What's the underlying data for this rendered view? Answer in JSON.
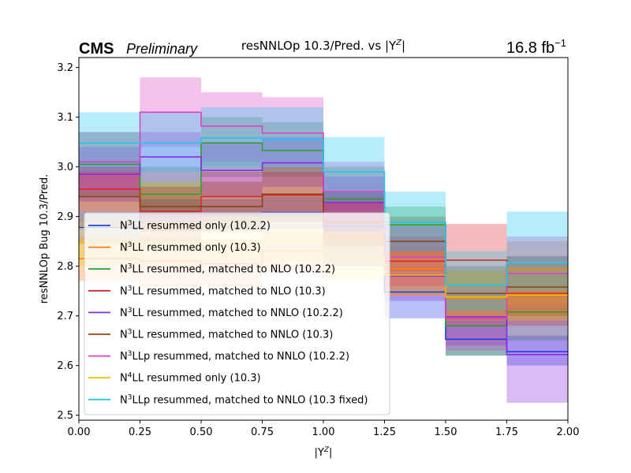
{
  "header": {
    "experiment": "CMS",
    "status": "Preliminary",
    "title": "resNNLOp 10.3/Pred. vs |Y",
    "title_sup": "Z",
    "title_end": "|",
    "lumi": "16.8 fb",
    "lumi_sup": "−1"
  },
  "chart_data": {
    "type": "line",
    "style": "step-with-uncertainty-bands",
    "xlabel": "|Y",
    "xlabel_sup": "Z",
    "xlabel_end": "|",
    "ylabel": "resNNLOp Bug 10.3/Pred.",
    "xlim": [
      0.0,
      2.0
    ],
    "ylim": [
      2.49,
      3.22
    ],
    "grid": false,
    "legend_position": "lower-left",
    "x_ticks": [
      0.0,
      0.25,
      0.5,
      0.75,
      1.0,
      1.25,
      1.5,
      1.75,
      2.0
    ],
    "x_tick_labels": [
      "0.00",
      "0.25",
      "0.50",
      "0.75",
      "1.00",
      "1.25",
      "1.50",
      "1.75",
      "2.00"
    ],
    "y_ticks": [
      2.5,
      2.6,
      2.7,
      2.8,
      2.9,
      3.0,
      3.1,
      3.2
    ],
    "y_tick_labels": [
      "2.5",
      "2.6",
      "2.7",
      "2.8",
      "2.9",
      "3.0",
      "3.1",
      "3.2"
    ],
    "bin_edges": [
      0.0,
      0.25,
      0.5,
      0.75,
      1.0,
      1.25,
      1.5,
      1.75,
      2.0
    ],
    "series": [
      {
        "pre": "N",
        "sup": "3",
        "post": "LL resummed only (10.2.2)",
        "color": "#1f3fe0",
        "values": [
          2.878,
          2.905,
          2.905,
          2.908,
          2.88,
          2.748,
          2.653,
          2.628
        ],
        "lo": [
          2.845,
          2.87,
          2.87,
          2.875,
          2.8,
          2.695,
          2.62,
          2.6
        ],
        "hi": [
          2.91,
          2.935,
          2.935,
          2.94,
          2.95,
          2.8,
          2.7,
          2.66
        ]
      },
      {
        "pre": "N",
        "sup": "3",
        "post": "LL resummed only (10.3)",
        "color": "#ff7f0e",
        "values": [
          2.815,
          2.81,
          2.805,
          2.83,
          2.855,
          2.795,
          2.735,
          2.793
        ],
        "lo": [
          2.77,
          2.76,
          2.76,
          2.79,
          2.8,
          2.74,
          2.68,
          2.7
        ],
        "hi": [
          2.86,
          2.86,
          2.85,
          2.87,
          2.9,
          2.84,
          2.79,
          2.85
        ]
      },
      {
        "pre": "N",
        "sup": "3",
        "post": "LL resummed, matched to NLO (10.2.2)",
        "color": "#2ca02c",
        "values": [
          3.005,
          2.945,
          3.048,
          3.033,
          2.935,
          2.883,
          2.68,
          2.708
        ],
        "lo": [
          2.94,
          2.9,
          2.98,
          2.98,
          2.88,
          2.82,
          2.62,
          2.65
        ],
        "hi": [
          3.07,
          3.0,
          3.1,
          3.09,
          3.0,
          2.92,
          2.74,
          2.82
        ]
      },
      {
        "pre": "N",
        "sup": "3",
        "post": "LL resummed, matched to NLO (10.3)",
        "color": "#d62728",
        "values": [
          2.955,
          2.91,
          2.94,
          2.943,
          2.888,
          2.81,
          2.812,
          2.745
        ],
        "lo": [
          2.91,
          2.85,
          2.89,
          2.89,
          2.84,
          2.76,
          2.74,
          2.68
        ],
        "hi": [
          3.0,
          2.96,
          2.99,
          2.99,
          2.94,
          2.86,
          2.885,
          2.8
        ]
      },
      {
        "pre": "N",
        "sup": "3",
        "post": "LL resummed, matched to NNLO (10.2.2)",
        "color": "#8a2be2",
        "values": [
          2.985,
          3.02,
          2.993,
          3.008,
          2.928,
          2.78,
          2.698,
          2.622
        ],
        "lo": [
          2.93,
          2.97,
          2.94,
          2.96,
          2.87,
          2.73,
          2.64,
          2.525
        ],
        "hi": [
          3.04,
          3.07,
          3.05,
          3.06,
          2.98,
          2.83,
          2.75,
          2.72
        ]
      },
      {
        "pre": "N",
        "sup": "3",
        "post": "LL resummed, matched to NNLO (10.3)",
        "color": "#8b4513",
        "values": [
          2.94,
          2.92,
          2.92,
          2.945,
          2.89,
          2.85,
          2.745,
          2.758
        ],
        "lo": [
          2.88,
          2.87,
          2.87,
          2.89,
          2.84,
          2.79,
          2.69,
          2.7
        ],
        "hi": [
          3.0,
          2.97,
          2.97,
          3.0,
          2.95,
          2.9,
          2.8,
          2.82
        ]
      },
      {
        "pre": "N",
        "sup": "3",
        "post": "LLp resummed, matched to NNLO (10.2.2)",
        "color": "#e040c0",
        "values": [
          3.01,
          3.11,
          3.082,
          3.068,
          2.95,
          2.818,
          2.695,
          2.785
        ],
        "lo": [
          2.95,
          3.04,
          3.01,
          3.0,
          2.89,
          2.76,
          2.63,
          2.71
        ],
        "hi": [
          3.07,
          3.18,
          3.15,
          3.14,
          3.01,
          2.88,
          2.76,
          2.86
        ]
      },
      {
        "pre": "N",
        "sup": "4",
        "post": "LL resummed only (10.3)",
        "color": "#f0c000",
        "values": [
          2.848,
          2.848,
          2.853,
          2.853,
          2.818,
          2.782,
          2.738,
          2.742
        ],
        "lo": [
          2.8,
          2.8,
          2.81,
          2.81,
          2.77,
          2.74,
          2.69,
          2.69
        ],
        "hi": [
          2.89,
          2.89,
          2.9,
          2.9,
          2.87,
          2.83,
          2.79,
          2.8
        ]
      },
      {
        "pre": "N",
        "sup": "3",
        "post": "LLp resummed, matched to NNLO (10.3 fixed)",
        "color": "#20c8f0",
        "values": [
          3.048,
          3.048,
          3.058,
          3.055,
          2.99,
          2.888,
          2.762,
          2.808
        ],
        "lo": [
          2.99,
          2.99,
          3.0,
          3.0,
          2.93,
          2.83,
          2.71,
          2.75
        ],
        "hi": [
          3.11,
          3.11,
          3.12,
          3.12,
          3.06,
          2.95,
          2.83,
          2.91
        ]
      }
    ]
  }
}
